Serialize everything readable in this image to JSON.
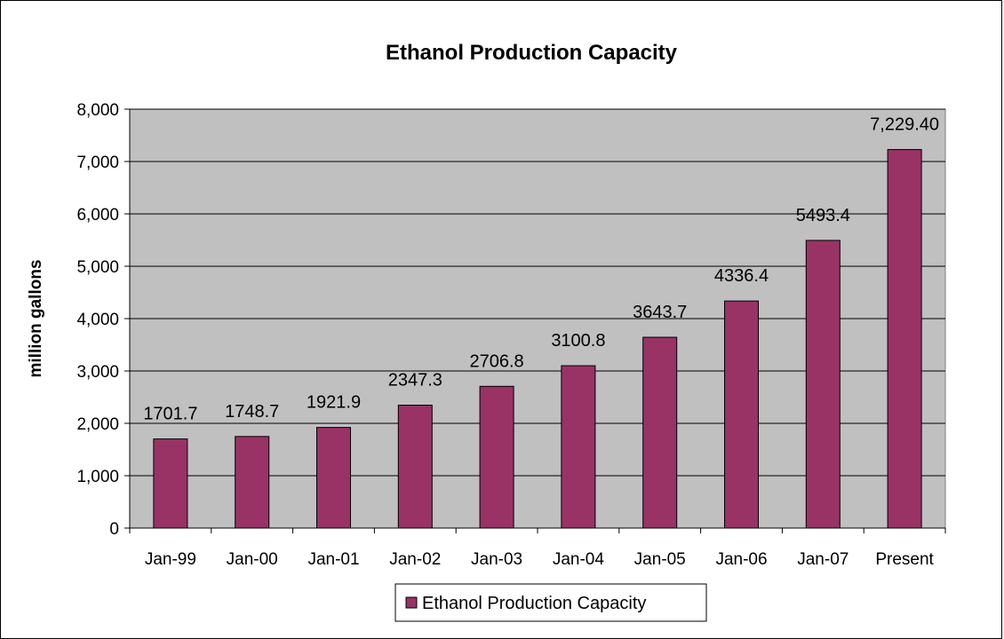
{
  "chart_data": {
    "type": "bar",
    "title": "Ethanol Production Capacity",
    "xlabel": "",
    "ylabel": "million gallons",
    "ylim": [
      0,
      8000
    ],
    "yticks": [
      0,
      1000,
      2000,
      3000,
      4000,
      5000,
      6000,
      7000,
      8000
    ],
    "ytick_labels": [
      "0",
      "1,000",
      "2,000",
      "3,000",
      "4,000",
      "5,000",
      "6,000",
      "7,000",
      "8,000"
    ],
    "categories": [
      "Jan-99",
      "Jan-00",
      "Jan-01",
      "Jan-02",
      "Jan-03",
      "Jan-04",
      "Jan-05",
      "Jan-06",
      "Jan-07",
      "Present"
    ],
    "series": [
      {
        "name": "Ethanol Production Capacity",
        "color": "#993366",
        "values": [
          1701.7,
          1748.7,
          1921.9,
          2347.3,
          2706.8,
          3100.8,
          3643.7,
          4336.4,
          5493.4,
          7229.4
        ],
        "data_labels": [
          "1701.7",
          "1748.7",
          "1921.9",
          "2347.3",
          "2706.8",
          "3100.8",
          "3643.7",
          "4336.4",
          "5493.4",
          "7,229.40"
        ]
      }
    ],
    "grid": true,
    "plot_background": "#c0c0c0",
    "legend_position": "bottom"
  }
}
